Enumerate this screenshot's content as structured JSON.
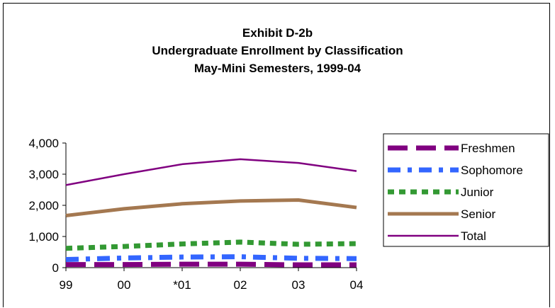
{
  "chart_data": {
    "type": "line",
    "title_lines": [
      "Exhibit D-2b",
      "Undergraduate Enrollment by Classification",
      "May-Mini Semesters, 1999-04"
    ],
    "categories": [
      "99",
      "00",
      "*01",
      "02",
      "03",
      "04"
    ],
    "y_ticks": [
      "0",
      "1,000",
      "2,000",
      "3,000",
      "4,000"
    ],
    "ylim": [
      0,
      4000
    ],
    "grid": false,
    "legend_position": "right",
    "series": [
      {
        "name": "Freshmen",
        "values": [
          100,
          100,
          110,
          110,
          90,
          90
        ],
        "color": "#800080",
        "style": "dash-long",
        "width": 7
      },
      {
        "name": "Sophomore",
        "values": [
          260,
          310,
          340,
          350,
          300,
          290
        ],
        "color": "#3366ff",
        "style": "dash-mixed",
        "width": 7
      },
      {
        "name": "Junior",
        "values": [
          620,
          680,
          760,
          820,
          750,
          770
        ],
        "color": "#339933",
        "style": "dot",
        "width": 7
      },
      {
        "name": "Senior",
        "values": [
          1670,
          1890,
          2050,
          2140,
          2170,
          1930
        ],
        "color": "#a47850",
        "style": "solid",
        "width": 5
      },
      {
        "name": "Total",
        "values": [
          2650,
          3000,
          3320,
          3480,
          3360,
          3100
        ],
        "color": "#800080",
        "style": "solid",
        "width": 2.5
      }
    ]
  }
}
